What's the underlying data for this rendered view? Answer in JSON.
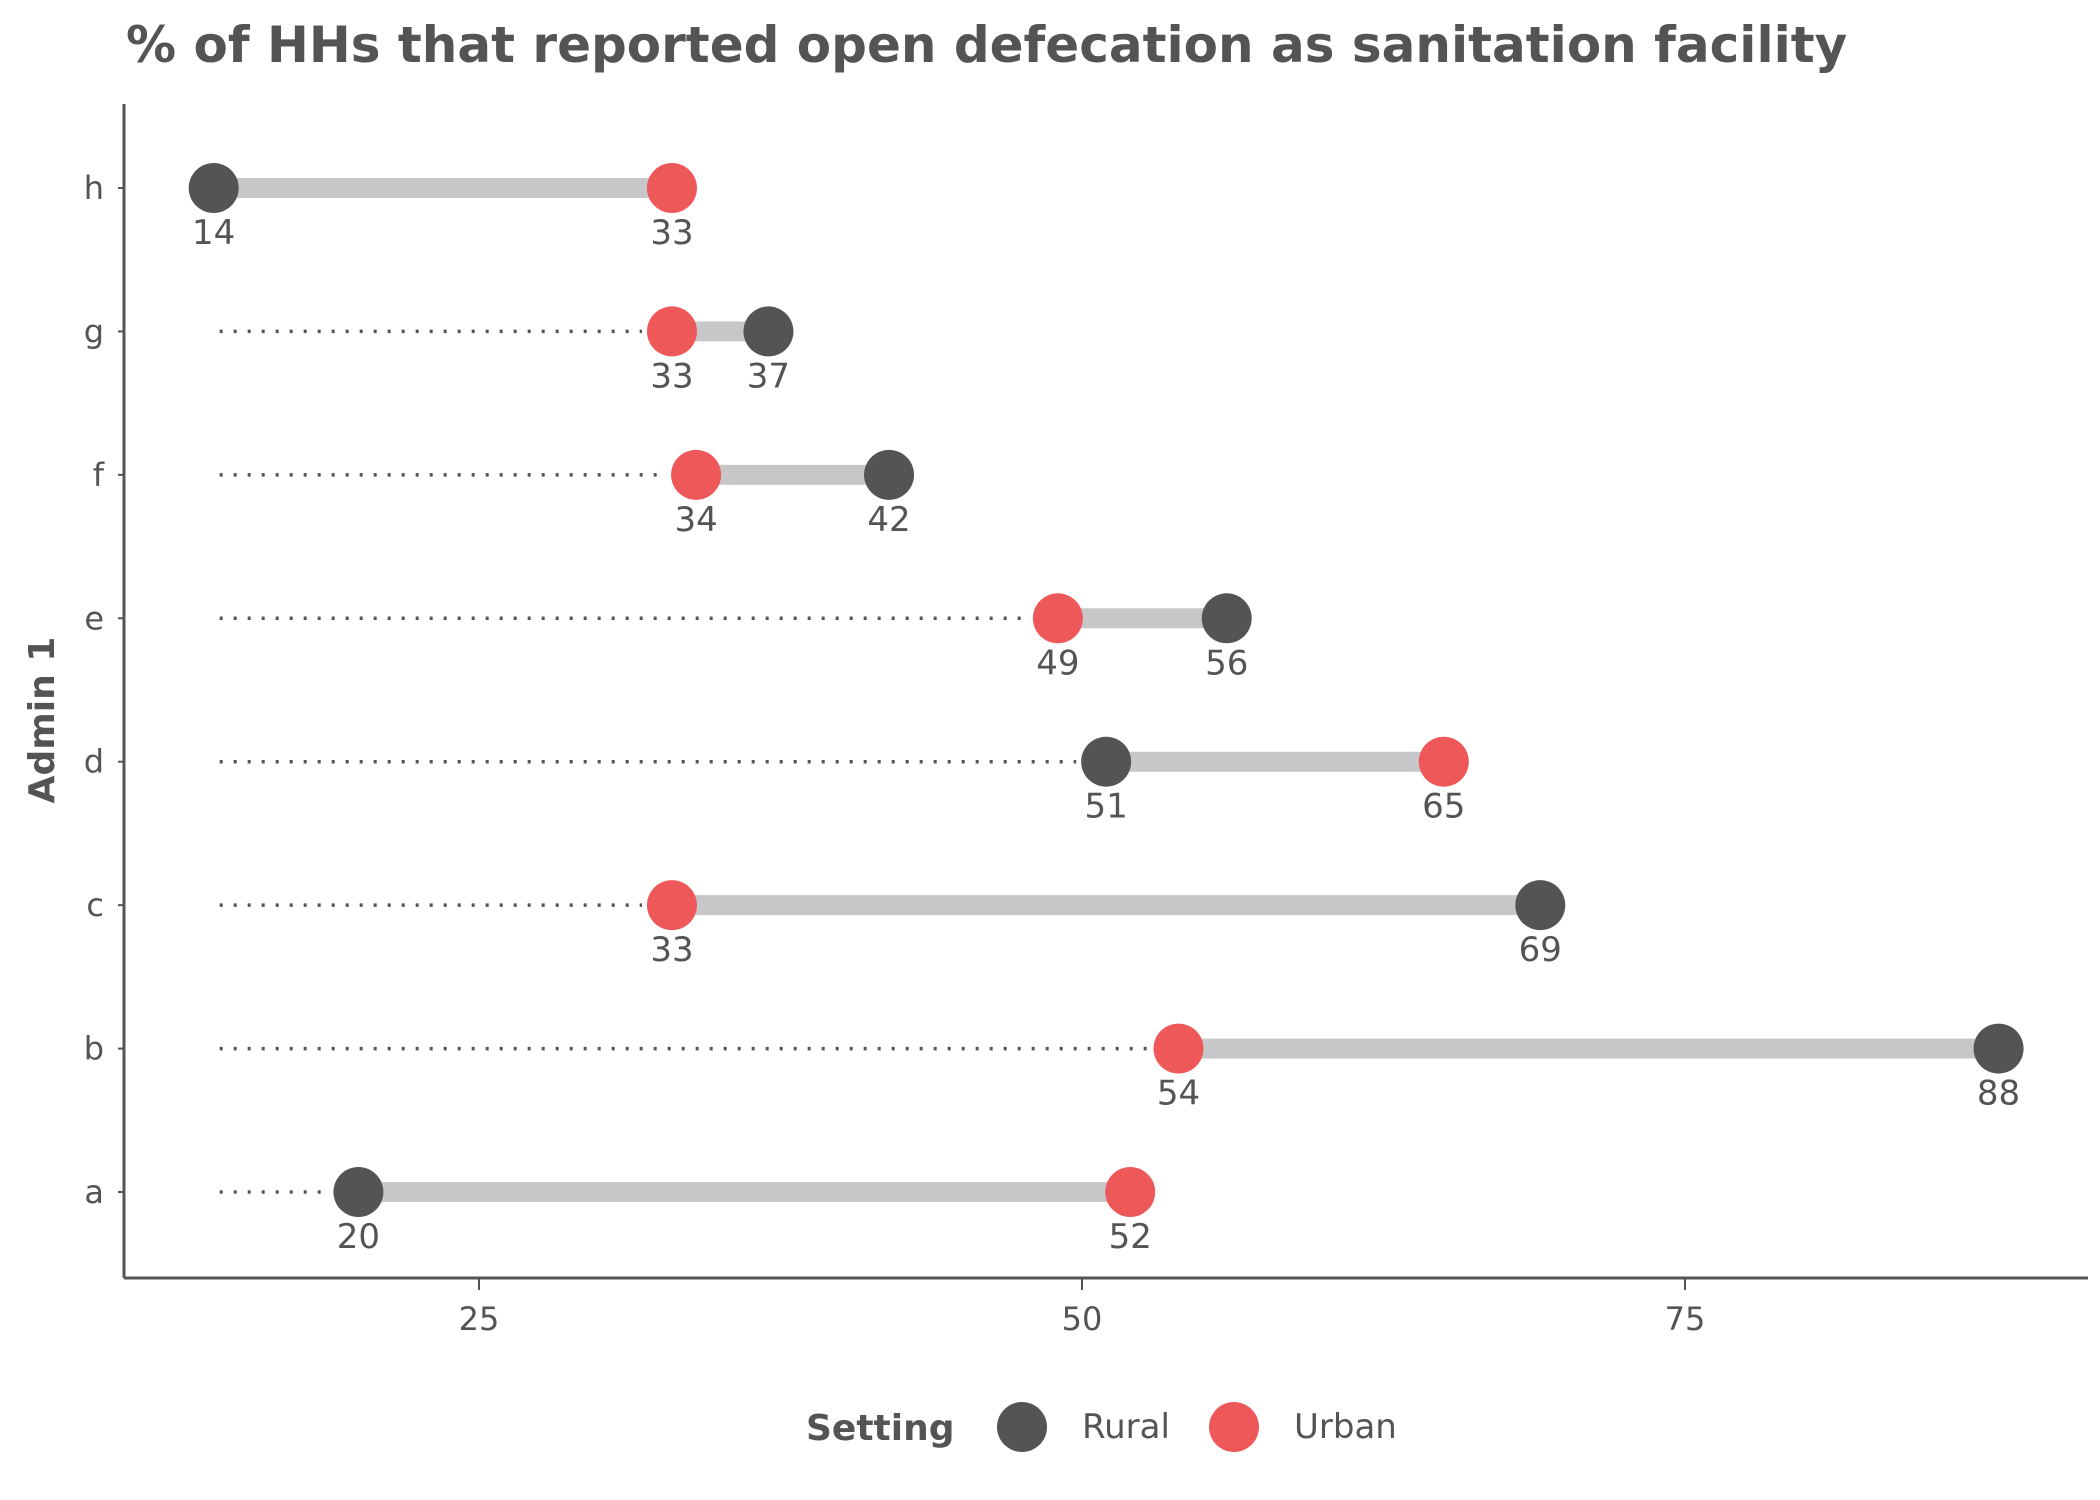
{
  "chart_data": {
    "type": "dumbbell",
    "title": "% of HHs that reported open defecation as sanitation facility",
    "xlabel": "",
    "ylabel": "Admin 1",
    "xticks": [
      25,
      50,
      75
    ],
    "xlim": [
      11,
      93
    ],
    "categories": [
      "a",
      "b",
      "c",
      "d",
      "e",
      "f",
      "g",
      "h"
    ],
    "series": [
      {
        "name": "Rural",
        "color": "#545457",
        "values": [
          20,
          88,
          69,
          51,
          56,
          42,
          37,
          14
        ]
      },
      {
        "name": "Urban",
        "color": "#ee5859",
        "values": [
          52,
          54,
          33,
          65,
          49,
          34,
          33,
          33
        ]
      }
    ],
    "legend": {
      "title": "Setting",
      "placement": "bottom"
    },
    "segment_color": "#c6c7c8",
    "grid": false
  }
}
